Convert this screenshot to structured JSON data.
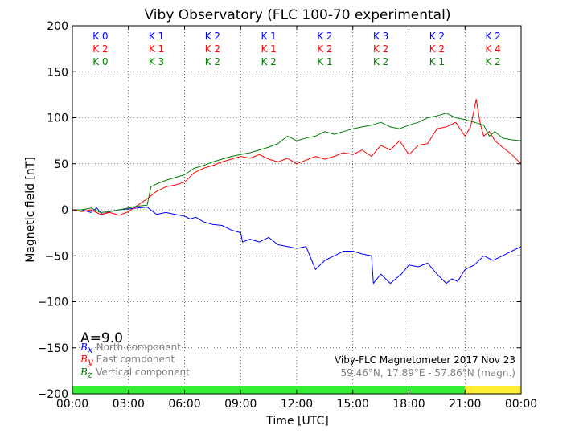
{
  "chart_data": {
    "type": "line",
    "title": "Viby Observatory (FLC 100-70 experimental)",
    "xlabel": "Time [UTC]",
    "ylabel": "Magnetic field [nT]",
    "xlim": [
      0,
      24
    ],
    "ylim": [
      -200,
      200
    ],
    "x_ticks": [
      0,
      3,
      6,
      9,
      12,
      15,
      18,
      21,
      24
    ],
    "x_tick_labels": [
      "00:00",
      "03:00",
      "06:00",
      "09:00",
      "12:00",
      "15:00",
      "18:00",
      "21:00",
      "00:00"
    ],
    "y_ticks": [
      -200,
      -150,
      -100,
      -50,
      0,
      50,
      100,
      150,
      200
    ],
    "y_tick_labels": [
      "−200",
      "−150",
      "−100",
      "−50",
      "0",
      "50",
      "100",
      "150",
      "200"
    ],
    "grid": true,
    "colors": {
      "bx": "#0000ff",
      "by": "#ff0000",
      "bz": "#008000",
      "bar_ok": "#33ee33",
      "bar_warn": "#ffee33"
    },
    "series": [
      {
        "name": "North component",
        "symbol": "B",
        "subscript": "x",
        "color": "#0000ff",
        "x": [
          0,
          0.5,
          1,
          1.3,
          1.6,
          2,
          2.5,
          3,
          3.5,
          4,
          4.5,
          5,
          5.5,
          6,
          6.3,
          6.6,
          7,
          7.5,
          8,
          8.5,
          9,
          9.1,
          9.5,
          10,
          10.5,
          11,
          11.5,
          12,
          12.5,
          12.8,
          13,
          13.5,
          14,
          14.5,
          15,
          15.5,
          16,
          16.1,
          16.5,
          17,
          17.3,
          17.6,
          18,
          18.5,
          19,
          19.5,
          20,
          20.3,
          20.6,
          21,
          21.5,
          22,
          22.5,
          23,
          23.5,
          24
        ],
        "values": [
          0,
          0,
          -3,
          2,
          -5,
          -2,
          0,
          1,
          2,
          3,
          -5,
          -3,
          -5,
          -7,
          -10,
          -8,
          -13,
          -16,
          -17,
          -22,
          -25,
          -35,
          -32,
          -35,
          -30,
          -38,
          -40,
          -42,
          -40,
          -55,
          -65,
          -55,
          -50,
          -45,
          -45,
          -48,
          -50,
          -80,
          -70,
          -80,
          -75,
          -70,
          -60,
          -62,
          -58,
          -70,
          -80,
          -75,
          -78,
          -65,
          -60,
          -50,
          -55,
          -50,
          -45,
          -40
        ]
      },
      {
        "name": "East component",
        "symbol": "B",
        "subscript": "y",
        "color": "#ff0000",
        "x": [
          0,
          0.5,
          1,
          1.5,
          2,
          2.5,
          3,
          3.5,
          4,
          4.5,
          5,
          5.5,
          6,
          6.5,
          7,
          7.5,
          8,
          8.5,
          9,
          9.5,
          10,
          10.5,
          11,
          11.5,
          12,
          12.5,
          13,
          13.5,
          14,
          14.5,
          15,
          15.5,
          16,
          16.5,
          17,
          17.5,
          18,
          18.5,
          19,
          19.5,
          20,
          20.5,
          21,
          21.3,
          21.6,
          21.8,
          22,
          22.3,
          22.6,
          23,
          23.5,
          24
        ],
        "values": [
          0,
          -2,
          0,
          -5,
          -3,
          -6,
          -2,
          5,
          12,
          20,
          25,
          27,
          30,
          40,
          45,
          48,
          52,
          55,
          58,
          56,
          60,
          55,
          52,
          56,
          50,
          54,
          58,
          55,
          58,
          62,
          60,
          65,
          58,
          70,
          65,
          75,
          60,
          70,
          72,
          88,
          90,
          95,
          80,
          90,
          120,
          95,
          80,
          85,
          75,
          68,
          60,
          50
        ]
      },
      {
        "name": "Vertical component",
        "symbol": "B",
        "subscript": "z",
        "color": "#008000",
        "x": [
          0,
          0.5,
          1,
          1.5,
          2,
          2.5,
          3,
          3.5,
          4,
          4.2,
          4.5,
          5,
          5.5,
          6,
          6.5,
          7,
          7.5,
          8,
          8.5,
          9,
          9.5,
          10,
          10.5,
          11,
          11.5,
          12,
          12.5,
          13,
          13.5,
          14,
          14.5,
          15,
          15.5,
          16,
          16.5,
          17,
          17.5,
          18,
          18.5,
          19,
          19.5,
          20,
          20.5,
          21,
          21.5,
          22,
          22.3,
          22.6,
          23,
          23.5,
          24
        ],
        "values": [
          0,
          0,
          2,
          -3,
          -2,
          0,
          2,
          4,
          5,
          25,
          28,
          32,
          35,
          38,
          45,
          48,
          52,
          55,
          58,
          60,
          62,
          65,
          68,
          72,
          80,
          75,
          78,
          80,
          85,
          82,
          85,
          88,
          90,
          92,
          95,
          90,
          88,
          92,
          95,
          100,
          102,
          105,
          100,
          98,
          95,
          92,
          80,
          85,
          78,
          76,
          75
        ]
      }
    ],
    "k_indices": {
      "rows": [
        {
          "color": "#0000ff",
          "labels": [
            "K 0",
            "K 1",
            "K 2",
            "K 1",
            "K 2",
            "K 3",
            "K 2",
            "K 2"
          ]
        },
        {
          "color": "#ff0000",
          "labels": [
            "K 2",
            "K 1",
            "K 2",
            "K 1",
            "K 2",
            "K 2",
            "K 2",
            "K 4"
          ]
        },
        {
          "color": "#008000",
          "labels": [
            "K 0",
            "K 3",
            "K 2",
            "K 2",
            "K 1",
            "K 2",
            "K 1",
            "K 2"
          ]
        }
      ]
    },
    "activity_bar": [
      {
        "from": 0,
        "to": 21,
        "color": "#33ee33"
      },
      {
        "from": 21,
        "to": 24,
        "color": "#ffee33"
      }
    ],
    "a_index": "A=9.0",
    "legend": [
      {
        "symbol": "B",
        "subscript": "x",
        "label": "North component",
        "color": "#0000ff"
      },
      {
        "symbol": "B",
        "subscript": "y",
        "label": "East component",
        "color": "#ff0000"
      },
      {
        "symbol": "B",
        "subscript": "z",
        "label": "Vertical component",
        "color": "#008000"
      }
    ],
    "legend_position": "bottom-left",
    "info_line1": "Viby-FLC Magnetometer 2017 Nov 23",
    "info_line2": "59.46°N, 17.89°E - 57.86°N (magn.)"
  }
}
